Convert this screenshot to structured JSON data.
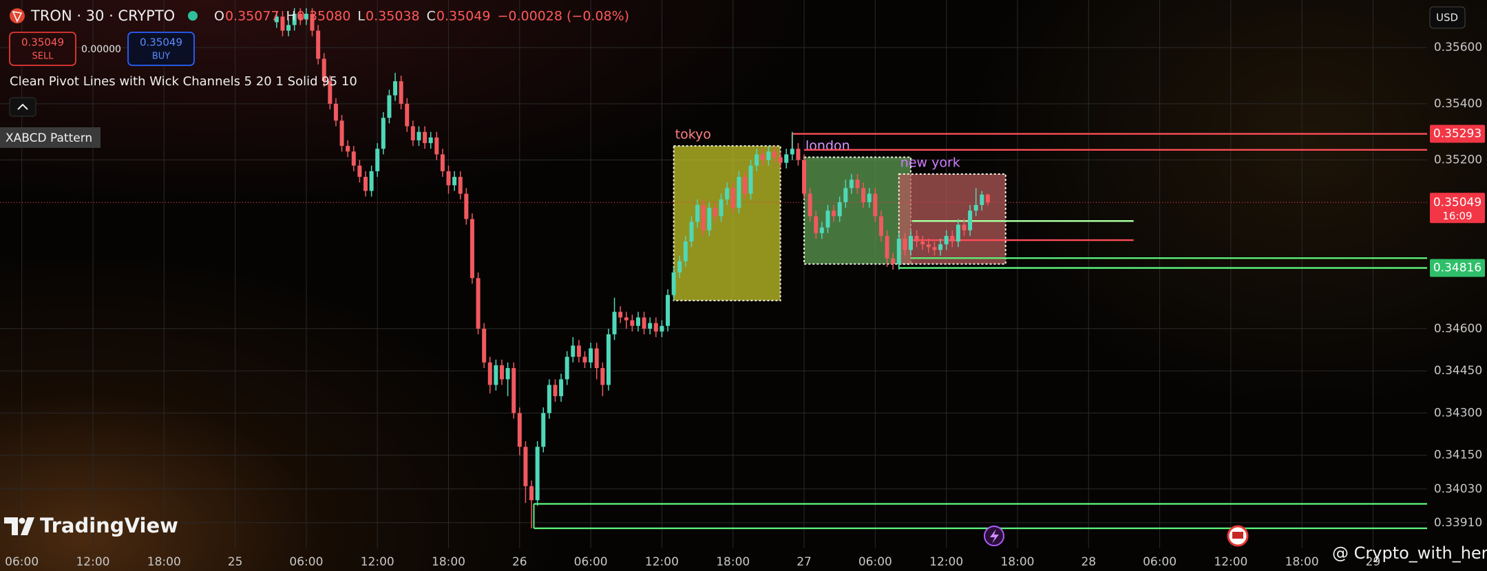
{
  "header": {
    "symbol": "TRON · 30 · CRYPTO",
    "ohlc": [
      {
        "key": "O",
        "value": "0.35077"
      },
      {
        "key": "H",
        "value": "0.35080"
      },
      {
        "key": "L",
        "value": "0.35038"
      },
      {
        "key": "C",
        "value": "0.35049"
      }
    ],
    "change": "−0.00028 (−0.08%)",
    "sell": {
      "price": "0.35049",
      "label": "SELL"
    },
    "spread": "0.00000",
    "buy": {
      "price": "0.35049",
      "label": "BUY"
    },
    "indicator": "Clean Pivot Lines with Wick Channels 5 20 1 Solid 95 10",
    "pattern": "XABCD Pattern",
    "currency": "USD",
    "brand": "TradingView",
    "watermark": "@ Crypto_with_her"
  },
  "chart_data": {
    "type": "candlestick",
    "up_color": "#4fd8b8",
    "down_color": "#f0595f",
    "grid": true,
    "xlim": [
      -19.84,
      100.56
    ],
    "ylim": [
      0.33819,
      0.35769
    ],
    "xticks": [
      {
        "value": -18,
        "label": "06:00"
      },
      {
        "value": -12,
        "label": "12:00"
      },
      {
        "value": -6,
        "label": "18:00"
      },
      {
        "value": 0,
        "label": "25"
      },
      {
        "value": 6,
        "label": "06:00"
      },
      {
        "value": 12,
        "label": "12:00"
      },
      {
        "value": 18,
        "label": "18:00"
      },
      {
        "value": 24,
        "label": "26"
      },
      {
        "value": 30,
        "label": "06:00"
      },
      {
        "value": 36,
        "label": "12:00"
      },
      {
        "value": 42,
        "label": "18:00"
      },
      {
        "value": 48,
        "label": "27"
      },
      {
        "value": 54,
        "label": "06:00"
      },
      {
        "value": 60,
        "label": "12:00"
      },
      {
        "value": 66,
        "label": "18:00"
      },
      {
        "value": 72,
        "label": "28"
      },
      {
        "value": 78,
        "label": "06:00"
      },
      {
        "value": 84,
        "label": "12:00"
      },
      {
        "value": 90,
        "label": "18:00"
      },
      {
        "value": 96,
        "label": "29"
      }
    ],
    "yticks": [
      {
        "value": 0.356,
        "label": "0.35600"
      },
      {
        "value": 0.354,
        "label": "0.35400"
      },
      {
        "value": 0.352,
        "label": "0.35200"
      },
      {
        "value": 0.346,
        "label": "0.34600"
      },
      {
        "value": 0.3445,
        "label": "0.34450"
      },
      {
        "value": 0.343,
        "label": "0.34300"
      },
      {
        "value": 0.3415,
        "label": "0.34150"
      },
      {
        "value": 0.3403,
        "label": "0.34030"
      },
      {
        "value": 0.3391,
        "label": "0.33910"
      }
    ],
    "x": [
      3.5,
      4,
      4.5,
      5,
      5.5,
      6,
      6.5,
      7,
      7.5,
      8,
      8.5,
      9,
      9.5,
      10,
      10.5,
      11,
      11.5,
      12,
      12.5,
      13,
      13.5,
      14,
      14.5,
      15,
      15.5,
      16,
      16.5,
      17,
      17.5,
      18,
      18.5,
      19,
      19.5,
      20,
      20.5,
      21,
      21.5,
      22,
      22.5,
      23,
      23.5,
      24,
      24.5,
      25,
      25.5,
      26,
      26.5,
      27,
      27.5,
      28,
      28.5,
      29,
      29.5,
      30,
      30.5,
      31,
      31.5,
      32,
      32.5,
      33,
      33.5,
      34,
      34.5,
      35,
      35.5,
      36,
      36.5,
      37,
      37.5,
      38,
      38.5,
      39,
      39.5,
      40,
      40.5,
      41,
      41.5,
      42,
      42.5,
      43,
      43.5,
      44,
      44.5,
      45,
      45.5,
      46,
      46.5,
      47,
      47.5,
      48,
      48.5,
      49,
      49.5,
      50,
      50.5,
      51,
      51.5,
      52,
      52.5,
      53,
      53.5,
      54,
      54.5,
      55,
      55.5,
      56,
      56.5,
      57,
      57.5,
      58,
      58.5,
      59,
      59.5,
      60,
      60.5,
      61,
      61.5,
      62,
      62.5,
      63,
      63.5
    ],
    "ohlc": [
      [
        0.3569,
        0.3573,
        0.3567,
        0.3571
      ],
      [
        0.3571,
        0.3573,
        0.3564,
        0.3566
      ],
      [
        0.3566,
        0.357,
        0.3564,
        0.3568
      ],
      [
        0.3568,
        0.3574,
        0.3566,
        0.3572
      ],
      [
        0.3572,
        0.3574,
        0.3568,
        0.357
      ],
      [
        0.357,
        0.3574,
        0.3568,
        0.3572
      ],
      [
        0.3572,
        0.3574,
        0.3564,
        0.3566
      ],
      [
        0.3566,
        0.3568,
        0.3554,
        0.3556
      ],
      [
        0.3556,
        0.3558,
        0.3546,
        0.3548
      ],
      [
        0.3548,
        0.355,
        0.3538,
        0.354
      ],
      [
        0.354,
        0.3542,
        0.3532,
        0.3534
      ],
      [
        0.3534,
        0.3536,
        0.3523,
        0.3525
      ],
      [
        0.3525,
        0.3527,
        0.3521,
        0.3523
      ],
      [
        0.3523,
        0.3525,
        0.3516,
        0.3518
      ],
      [
        0.3518,
        0.352,
        0.3512,
        0.3514
      ],
      [
        0.3514,
        0.3516,
        0.3507,
        0.3509
      ],
      [
        0.3509,
        0.3518,
        0.3507,
        0.3516
      ],
      [
        0.3516,
        0.3526,
        0.3514,
        0.3524
      ],
      [
        0.3524,
        0.3537,
        0.3522,
        0.3535
      ],
      [
        0.3535,
        0.3545,
        0.3533,
        0.3543
      ],
      [
        0.3543,
        0.3551,
        0.3541,
        0.3548
      ],
      [
        0.3548,
        0.355,
        0.3538,
        0.354
      ],
      [
        0.354,
        0.3542,
        0.353,
        0.3532
      ],
      [
        0.3532,
        0.3534,
        0.3525,
        0.3527
      ],
      [
        0.3527,
        0.3532,
        0.3525,
        0.353
      ],
      [
        0.353,
        0.3532,
        0.3524,
        0.3526
      ],
      [
        0.3526,
        0.353,
        0.3524,
        0.3528
      ],
      [
        0.3528,
        0.353,
        0.352,
        0.3522
      ],
      [
        0.3522,
        0.3524,
        0.3514,
        0.3516
      ],
      [
        0.3516,
        0.3518,
        0.3508,
        0.3511
      ],
      [
        0.3511,
        0.3516,
        0.3509,
        0.3514
      ],
      [
        0.3514,
        0.3516,
        0.3506,
        0.3508
      ],
      [
        0.3508,
        0.351,
        0.3497,
        0.3499
      ],
      [
        0.3499,
        0.3501,
        0.3476,
        0.3478
      ],
      [
        0.3478,
        0.348,
        0.3458,
        0.346
      ],
      [
        0.346,
        0.3462,
        0.3446,
        0.3448
      ],
      [
        0.3448,
        0.345,
        0.3437,
        0.344
      ],
      [
        0.344,
        0.3449,
        0.3438,
        0.3447
      ],
      [
        0.3447,
        0.3449,
        0.344,
        0.3442
      ],
      [
        0.3442,
        0.3448,
        0.3436,
        0.3446
      ],
      [
        0.3446,
        0.3448,
        0.3428,
        0.343
      ],
      [
        0.343,
        0.3432,
        0.3415,
        0.3418
      ],
      [
        0.3418,
        0.342,
        0.3398,
        0.3404
      ],
      [
        0.3404,
        0.3406,
        0.3389,
        0.3399
      ],
      [
        0.3399,
        0.342,
        0.3397,
        0.3418
      ],
      [
        0.3418,
        0.3432,
        0.3416,
        0.343
      ],
      [
        0.343,
        0.3442,
        0.3428,
        0.344
      ],
      [
        0.344,
        0.3442,
        0.3434,
        0.3436
      ],
      [
        0.3436,
        0.3444,
        0.3434,
        0.3442
      ],
      [
        0.3442,
        0.3452,
        0.344,
        0.345
      ],
      [
        0.345,
        0.3457,
        0.3448,
        0.3454
      ],
      [
        0.3454,
        0.3456,
        0.3448,
        0.345
      ],
      [
        0.345,
        0.3452,
        0.3446,
        0.3448
      ],
      [
        0.3448,
        0.3455,
        0.3446,
        0.3453
      ],
      [
        0.3453,
        0.3455,
        0.3442,
        0.3446
      ],
      [
        0.3446,
        0.3448,
        0.3436,
        0.344
      ],
      [
        0.344,
        0.346,
        0.3438,
        0.3458
      ],
      [
        0.3458,
        0.3471,
        0.3456,
        0.3466
      ],
      [
        0.3466,
        0.3468,
        0.3462,
        0.3464
      ],
      [
        0.3464,
        0.3466,
        0.346,
        0.3463
      ],
      [
        0.3463,
        0.3465,
        0.3459,
        0.3461
      ],
      [
        0.3461,
        0.3466,
        0.3459,
        0.3464
      ],
      [
        0.3464,
        0.3466,
        0.3458,
        0.346
      ],
      [
        0.346,
        0.3464,
        0.3458,
        0.3462
      ],
      [
        0.3462,
        0.3464,
        0.3457,
        0.3459
      ],
      [
        0.3459,
        0.3463,
        0.3457,
        0.3461
      ],
      [
        0.3461,
        0.3474,
        0.3459,
        0.3472
      ],
      [
        0.3472,
        0.3482,
        0.347,
        0.348
      ],
      [
        0.348,
        0.3486,
        0.3478,
        0.3484
      ],
      [
        0.3484,
        0.3493,
        0.3482,
        0.3491
      ],
      [
        0.3491,
        0.35,
        0.3489,
        0.3498
      ],
      [
        0.3498,
        0.3506,
        0.3496,
        0.3504
      ],
      [
        0.3504,
        0.3506,
        0.3493,
        0.3495
      ],
      [
        0.3495,
        0.3505,
        0.3493,
        0.3503
      ],
      [
        0.3503,
        0.3505,
        0.3498,
        0.35
      ],
      [
        0.35,
        0.3508,
        0.3498,
        0.3506
      ],
      [
        0.3506,
        0.3512,
        0.3504,
        0.351
      ],
      [
        0.351,
        0.3512,
        0.3501,
        0.3503
      ],
      [
        0.3503,
        0.3516,
        0.3501,
        0.3514
      ],
      [
        0.3514,
        0.3516,
        0.3506,
        0.3508
      ],
      [
        0.3508,
        0.352,
        0.3506,
        0.3518
      ],
      [
        0.3518,
        0.3524,
        0.3516,
        0.3522
      ],
      [
        0.3522,
        0.3524,
        0.3518,
        0.352
      ],
      [
        0.352,
        0.3525,
        0.3518,
        0.3523
      ],
      [
        0.3523,
        0.3525,
        0.3519,
        0.3521
      ],
      [
        0.3521,
        0.3523,
        0.3517,
        0.3519
      ],
      [
        0.3519,
        0.3524,
        0.3517,
        0.3522
      ],
      [
        0.3522,
        0.353,
        0.352,
        0.3524
      ],
      [
        0.3524,
        0.3526,
        0.3518,
        0.352
      ],
      [
        0.352,
        0.3522,
        0.3506,
        0.3508
      ],
      [
        0.3508,
        0.351,
        0.3498,
        0.35
      ],
      [
        0.35,
        0.3502,
        0.3492,
        0.3494
      ],
      [
        0.3494,
        0.3498,
        0.3492,
        0.3496
      ],
      [
        0.3496,
        0.3504,
        0.3494,
        0.3502
      ],
      [
        0.3502,
        0.3504,
        0.3498,
        0.35
      ],
      [
        0.35,
        0.3507,
        0.3498,
        0.3505
      ],
      [
        0.3505,
        0.3513,
        0.3503,
        0.351
      ],
      [
        0.351,
        0.3515,
        0.3508,
        0.3513
      ],
      [
        0.3513,
        0.3515,
        0.3508,
        0.351
      ],
      [
        0.351,
        0.3512,
        0.3503,
        0.3505
      ],
      [
        0.3505,
        0.351,
        0.3503,
        0.3508
      ],
      [
        0.3508,
        0.351,
        0.3498,
        0.35
      ],
      [
        0.35,
        0.3502,
        0.3491,
        0.3493
      ],
      [
        0.3493,
        0.3495,
        0.3482,
        0.3485
      ],
      [
        0.3485,
        0.3487,
        0.3481,
        0.3483
      ],
      [
        0.3483,
        0.3494,
        0.3481,
        0.3492
      ],
      [
        0.3492,
        0.3494,
        0.3486,
        0.3488
      ],
      [
        0.3488,
        0.3495,
        0.3486,
        0.3493
      ],
      [
        0.3493,
        0.3495,
        0.3489,
        0.3491
      ],
      [
        0.3491,
        0.3493,
        0.3488,
        0.349
      ],
      [
        0.349,
        0.3492,
        0.3487,
        0.3489
      ],
      [
        0.3489,
        0.3491,
        0.3486,
        0.3488
      ],
      [
        0.3488,
        0.3492,
        0.3486,
        0.349
      ],
      [
        0.349,
        0.3495,
        0.3488,
        0.3493
      ],
      [
        0.3493,
        0.3495,
        0.3489,
        0.3491
      ],
      [
        0.3491,
        0.3499,
        0.3489,
        0.3497
      ],
      [
        0.3497,
        0.3499,
        0.3493,
        0.3495
      ],
      [
        0.3495,
        0.3504,
        0.3493,
        0.3502
      ],
      [
        0.3502,
        0.351,
        0.35,
        0.3504
      ],
      [
        0.3504,
        0.3509,
        0.3502,
        0.35077
      ],
      [
        0.35077,
        0.3508,
        0.35038,
        0.35049
      ]
    ],
    "sessions": [
      {
        "name": "tokyo",
        "x": [
          37,
          46
        ],
        "range": [
          0.347,
          0.3525
        ],
        "color": "#c9c92a",
        "label_color": "#ff8080"
      },
      {
        "name": "london",
        "x": [
          48,
          57
        ],
        "range": [
          0.3483,
          0.3521
        ],
        "color": "#5f9f55",
        "label_color": "#d896ff"
      },
      {
        "name": "new york",
        "x": [
          56,
          65
        ],
        "range": [
          0.3483,
          0.3515
        ],
        "color": "#b65a5a",
        "label_color": "#d07cff"
      }
    ],
    "levels": [
      {
        "value": 0.35293,
        "start": 47,
        "color": "#ff4d57"
      },
      {
        "value": 0.35236,
        "start": 48,
        "color": "#ff4d57"
      },
      {
        "value": 0.34851,
        "start": 57,
        "color": "#5bf07a"
      },
      {
        "value": 0.34816,
        "start": 56,
        "color": "#5bf07a"
      },
      {
        "value": 0.33977,
        "start": 25.2,
        "color": "#5bf07a"
      },
      {
        "value": 0.3389,
        "start": 25.2,
        "color": "#5bf07a"
      },
      {
        "value": 0.34983,
        "start": 57.1,
        "end": 75.8,
        "color": "#a8ffa0"
      },
      {
        "value": 0.34915,
        "start": 57.1,
        "end": 75.8,
        "color": "#ff4d57"
      }
    ],
    "price_labels": [
      {
        "value": 0.35293,
        "color": "#f23645"
      },
      {
        "value": 0.35049,
        "color": "#f23645",
        "countdown": "16:09"
      },
      {
        "value": 0.34816,
        "color": "#2fbf6a"
      }
    ]
  }
}
